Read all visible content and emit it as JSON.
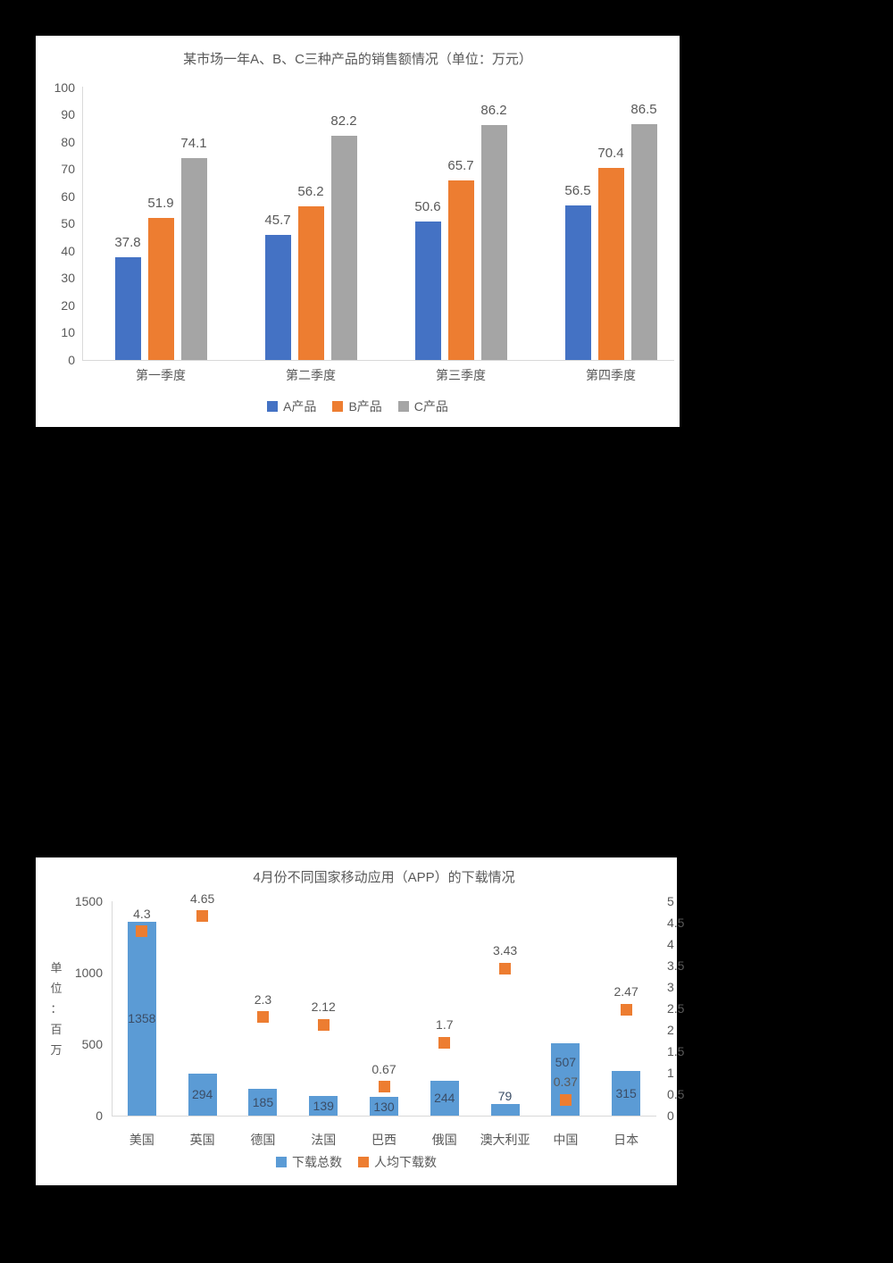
{
  "page": {
    "background_color": "#000000",
    "panel_color": "#ffffff"
  },
  "chart_data": [
    {
      "type": "bar",
      "title": "某市场一年A、B、C三种产品的销售额情况（单位：万元）",
      "categories": [
        "第一季度",
        "第二季度",
        "第三季度",
        "第四季度"
      ],
      "series": [
        {
          "name": "A产品",
          "color": "#4472C4",
          "values": [
            37.8,
            45.7,
            50.6,
            56.5
          ]
        },
        {
          "name": "B产品",
          "color": "#ED7D31",
          "values": [
            51.9,
            56.2,
            65.7,
            70.4
          ]
        },
        {
          "name": "C产品",
          "color": "#A5A5A5",
          "values": [
            74.1,
            82.2,
            86.2,
            86.5
          ]
        }
      ],
      "y_axis": {
        "min": 0,
        "max": 100,
        "step": 10,
        "ticks": [
          0,
          10,
          20,
          30,
          40,
          50,
          60,
          70,
          80,
          90,
          100
        ]
      },
      "grid": false,
      "data_labels": true,
      "legend_position": "bottom"
    },
    {
      "type": "combo-bar-scatter",
      "title": "4月份不同国家移动应用（APP）的下载情况",
      "categories": [
        "美国",
        "英国",
        "德国",
        "法国",
        "巴西",
        "俄国",
        "澳大利亚",
        "中国",
        "日本"
      ],
      "series": [
        {
          "name": "下载总数",
          "type": "bar",
          "axis": "left",
          "color": "#5B9BD5",
          "values": [
            1358,
            294,
            185,
            139,
            130,
            244,
            79,
            507,
            315
          ]
        },
        {
          "name": "人均下载数",
          "type": "scatter",
          "axis": "right",
          "color": "#ED7D31",
          "values": [
            4.3,
            4.65,
            2.3,
            2.12,
            0.67,
            1.7,
            3.43,
            0.37,
            2.47
          ]
        }
      ],
      "left_axis": {
        "title": "单位：百万",
        "min": 0,
        "max": 1500,
        "step": 500,
        "ticks": [
          0,
          500,
          1000,
          1500
        ]
      },
      "right_axis": {
        "min": 0,
        "max": 5,
        "step": 0.5,
        "ticks": [
          0,
          0.5,
          1,
          1.5,
          2,
          2.5,
          3,
          3.5,
          4,
          4.5,
          5
        ]
      },
      "grid": false,
      "data_labels": true,
      "legend_position": "bottom"
    }
  ]
}
